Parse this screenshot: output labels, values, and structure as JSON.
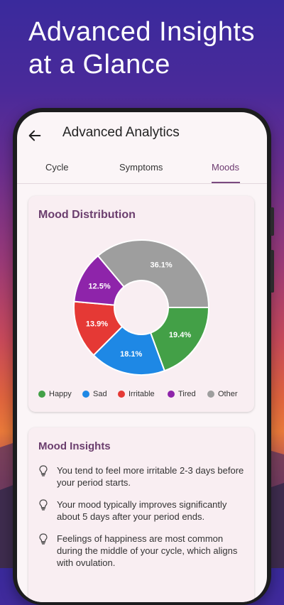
{
  "headline": {
    "line1": "Advanced Insights",
    "line2": "at a Glance"
  },
  "appbar": {
    "title": "Advanced Analytics",
    "back_icon": "arrow-left-icon"
  },
  "tabs": [
    {
      "label": "Cycle",
      "active": false
    },
    {
      "label": "Symptoms",
      "active": false
    },
    {
      "label": "Moods",
      "active": true
    }
  ],
  "mood_distribution": {
    "title": "Mood Distribution"
  },
  "chart_data": {
    "type": "pie",
    "title": "Mood Distribution",
    "categories": [
      "Happy",
      "Sad",
      "Irritable",
      "Tired",
      "Other"
    ],
    "values": [
      19.4,
      18.1,
      13.9,
      12.5,
      36.1
    ],
    "labels": [
      "19.4%",
      "18.1%",
      "13.9%",
      "12.5%",
      "36.1%"
    ],
    "colors": [
      "#43a047",
      "#1e88e5",
      "#e53935",
      "#8e24aa",
      "#9e9e9e"
    ],
    "donut": true,
    "legend_position": "bottom"
  },
  "mood_insights": {
    "title": "Mood Insights",
    "items": [
      "You tend to feel more irritable 2-3 days before your period starts.",
      "Your mood typically improves significantly about 5 days after your period ends.",
      "Feelings of happiness are most common during the middle of your cycle, which aligns with ovulation."
    ],
    "item_icon": "lightbulb-icon"
  }
}
